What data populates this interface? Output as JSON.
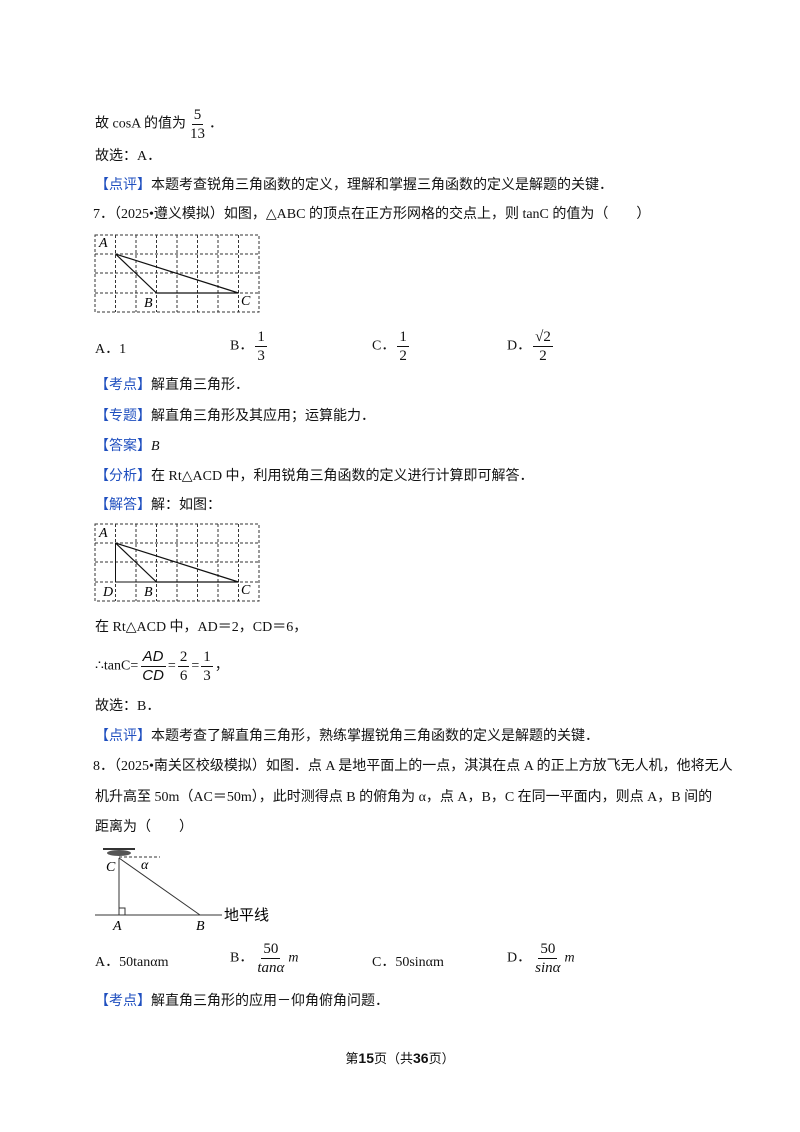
{
  "prev": {
    "conclusion": {
      "text": "故 cosA 的值为",
      "num": "5",
      "den": "13",
      "end": "．"
    },
    "choice": "故选：A．",
    "comment": {
      "tag": "【点评】",
      "text": "本题考查锐角三角函数的定义，理解和掌握三角函数的定义是解题的关键．"
    }
  },
  "q7": {
    "stem": "7．（2025•遵义模拟）如图，△ABC 的顶点在正方形网格的交点上，则 tanC 的值为（　　）",
    "figure": {
      "A": "A",
      "B": "B",
      "C": "C"
    },
    "options": [
      {
        "label": "A．",
        "text": "1"
      },
      {
        "label": "B．",
        "num": "1",
        "den": "3"
      },
      {
        "label": "C．",
        "num": "1",
        "den": "2"
      },
      {
        "label": "D．",
        "num": "√2",
        "den": "2"
      }
    ],
    "point": {
      "tag": "【考点】",
      "text": "解直角三角形．"
    },
    "topic": {
      "tag": "【专题】",
      "text": "解直角三角形及其应用；运算能力．"
    },
    "answer": {
      "tag": "【答案】",
      "text": "B"
    },
    "analysis": {
      "tag": "【分析】",
      "text": "在 Rt△ACD 中，利用锐角三角函数的定义进行计算即可解答．"
    },
    "solution": {
      "tag": "【解答】",
      "text": "解：如图："
    },
    "figure2": {
      "A": "A",
      "B": "B",
      "C": "C",
      "D": "D"
    },
    "step1": "在 Rt△ACD 中，AD＝2，CD＝6，",
    "step2": {
      "lead": "∴tanC=",
      "eq": "=",
      "end": "，",
      "terms": [
        {
          "num": "AD",
          "den": "CD"
        },
        {
          "num": "2",
          "den": "6"
        },
        {
          "num": "1",
          "den": "3"
        }
      ]
    },
    "choice": "故选：B．",
    "comment": {
      "tag": "【点评】",
      "text": "本题考查了解直角三角形，熟练掌握锐角三角函数的定义是解题的关键．"
    }
  },
  "q8": {
    "stem": [
      "8．（2025•南关区校级模拟）如图．点 A 是地平面上的一点，淇淇在点 A 的正上方放飞无人机，他将无人",
      "机升高至 50m（AC＝50m），此时测得点 B 的俯角为 α，点 A，B，C 在同一平面内，则点 A，B 间的",
      "距离为（　　）"
    ],
    "figure": {
      "C": "C",
      "alpha": "α",
      "A": "A",
      "B": "B",
      "ground": "地平线"
    },
    "options": [
      {
        "label": "A．",
        "text": "50tanαm"
      },
      {
        "label": "B．",
        "num": "50",
        "den": "tanα",
        "unit": "m"
      },
      {
        "label": "C．",
        "text": "50sinαm"
      },
      {
        "label": "D．",
        "num": "50",
        "den": "sinα",
        "unit": "m"
      }
    ],
    "point": {
      "tag": "【考点】",
      "text": "解直角三角形的应用－仰角俯角问题．"
    }
  },
  "footer": {
    "a": "第",
    "page": "15",
    "b": "页（共",
    "total": "36",
    "c": "页）"
  }
}
